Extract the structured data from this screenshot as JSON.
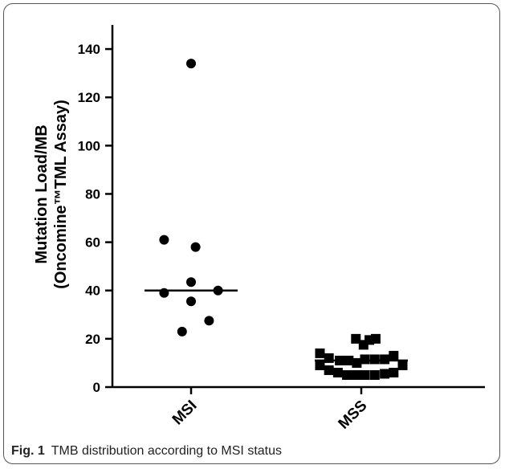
{
  "caption": {
    "label": "Fig. 1",
    "text": "TMB distribution according to MSI status"
  },
  "chart_data": {
    "type": "scatter",
    "title": "",
    "ylabel_line1": "Mutation Load/MB",
    "ylabel_line2": "(Oncomine™TML Assay)",
    "xlabel": "",
    "ylim": [
      0,
      150
    ],
    "yticks": [
      "0",
      "20",
      "40",
      "60",
      "80",
      "100",
      "120",
      "140"
    ],
    "categories": [
      "MSI",
      "MSS"
    ],
    "series": [
      {
        "category": "MSI",
        "marker": "circle",
        "median": 40,
        "points": [
          {
            "jitter": 0,
            "y": 134
          },
          {
            "jitter": -0.6,
            "y": 61
          },
          {
            "jitter": 0.1,
            "y": 58
          },
          {
            "jitter": 0,
            "y": 43.5
          },
          {
            "jitter": -0.6,
            "y": 39
          },
          {
            "jitter": 0.6,
            "y": 40
          },
          {
            "jitter": 0,
            "y": 35.5
          },
          {
            "jitter": 0.4,
            "y": 27.5
          },
          {
            "jitter": -0.2,
            "y": 23
          }
        ]
      },
      {
        "category": "MSS",
        "marker": "square",
        "median": 11,
        "points": [
          {
            "jitter": -0.12,
            "y": 20
          },
          {
            "jitter": 0.05,
            "y": 17.5
          },
          {
            "jitter": 0.18,
            "y": 19.5
          },
          {
            "jitter": 0.32,
            "y": 20
          },
          {
            "jitter": -0.92,
            "y": 14
          },
          {
            "jitter": -0.72,
            "y": 12
          },
          {
            "jitter": -0.48,
            "y": 11
          },
          {
            "jitter": -0.28,
            "y": 11
          },
          {
            "jitter": -0.1,
            "y": 10
          },
          {
            "jitter": 0.08,
            "y": 11.5
          },
          {
            "jitter": 0.3,
            "y": 11.5
          },
          {
            "jitter": 0.52,
            "y": 11.5
          },
          {
            "jitter": 0.72,
            "y": 13
          },
          {
            "jitter": -0.92,
            "y": 9
          },
          {
            "jitter": -0.72,
            "y": 7
          },
          {
            "jitter": -0.52,
            "y": 6
          },
          {
            "jitter": -0.32,
            "y": 5
          },
          {
            "jitter": -0.12,
            "y": 5
          },
          {
            "jitter": 0.08,
            "y": 5
          },
          {
            "jitter": 0.3,
            "y": 5
          },
          {
            "jitter": 0.52,
            "y": 5.5
          },
          {
            "jitter": 0.72,
            "y": 6
          },
          {
            "jitter": 0.92,
            "y": 9
          }
        ]
      }
    ],
    "colors": {
      "marker": "#000000",
      "axis": "#000000"
    }
  }
}
